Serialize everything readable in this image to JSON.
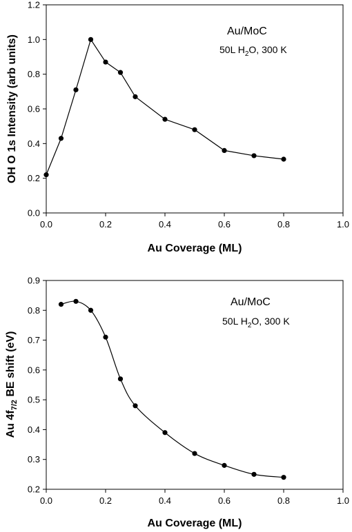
{
  "chart_data": [
    {
      "type": "line",
      "xlabel": "Au Coverage  (ML)",
      "ylabel": "OH  O 1s Intensity (arb units)",
      "annotation": {
        "line1": "Au/MoC",
        "line2_prefix": "50L H",
        "line2_sub": "2",
        "line2_suffix": "O, 300 K"
      },
      "xlim": [
        0.0,
        1.0
      ],
      "ylim": [
        0.0,
        1.2
      ],
      "x_ticks": [
        "0.0",
        "0.2",
        "0.4",
        "0.6",
        "0.8",
        "1.0"
      ],
      "y_ticks": [
        "0.0",
        "0.2",
        "0.4",
        "0.6",
        "0.8",
        "1.0",
        "1.2"
      ],
      "x": [
        0.0,
        0.05,
        0.1,
        0.15,
        0.2,
        0.25,
        0.3,
        0.4,
        0.5,
        0.6,
        0.7,
        0.8
      ],
      "y": [
        0.22,
        0.43,
        0.71,
        1.0,
        0.87,
        0.81,
        0.67,
        0.54,
        0.48,
        0.36,
        0.33,
        0.31
      ],
      "smooth": false,
      "grid": false
    },
    {
      "type": "line",
      "xlabel": "Au Coverage  (ML)",
      "ylabel_prefix": "Au 4f",
      "ylabel_sub": "7/2",
      "ylabel_suffix": " BE shift (eV)",
      "annotation": {
        "line1": "Au/MoC",
        "line2_prefix": "50L H",
        "line2_sub": "2",
        "line2_suffix": "O, 300 K"
      },
      "xlim": [
        0.0,
        1.0
      ],
      "ylim": [
        0.2,
        0.9
      ],
      "x_ticks": [
        "0.0",
        "0.2",
        "0.4",
        "0.6",
        "0.8",
        "1.0"
      ],
      "y_ticks": [
        "0.2",
        "0.3",
        "0.4",
        "0.5",
        "0.6",
        "0.7",
        "0.8",
        "0.9"
      ],
      "x": [
        0.05,
        0.1,
        0.15,
        0.2,
        0.25,
        0.3,
        0.4,
        0.5,
        0.6,
        0.7,
        0.8
      ],
      "y": [
        0.82,
        0.83,
        0.8,
        0.71,
        0.57,
        0.48,
        0.39,
        0.32,
        0.28,
        0.25,
        0.24
      ],
      "smooth": true,
      "grid": false
    }
  ]
}
